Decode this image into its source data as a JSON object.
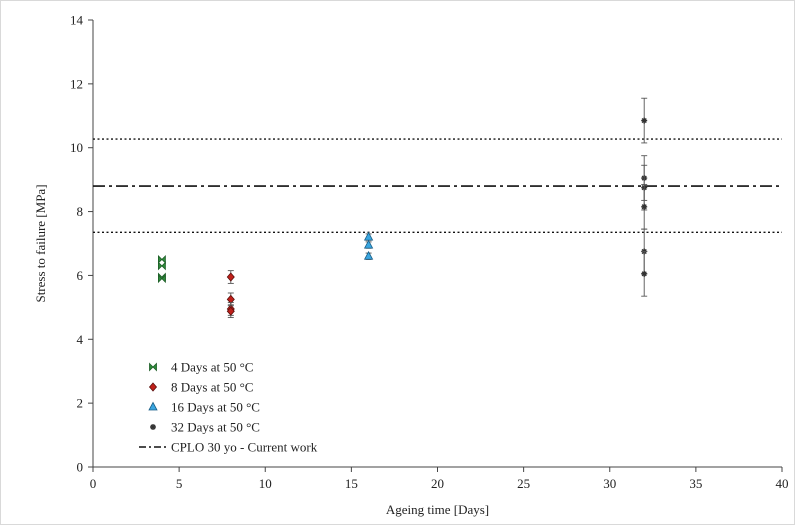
{
  "chart_data": {
    "type": "scatter",
    "xlabel": "Ageing time [Days]",
    "ylabel": "Stress to failure [MPa]",
    "xlim": [
      0,
      40
    ],
    "ylim": [
      0,
      14
    ],
    "x_ticks": [
      0,
      5,
      10,
      15,
      20,
      25,
      30,
      35,
      40
    ],
    "y_ticks": [
      0,
      2,
      4,
      6,
      8,
      10,
      12,
      14
    ],
    "grid": false,
    "legend_position": "bottom-left",
    "series": [
      {
        "name": "4 Days at 50 °C",
        "marker": "bowtie",
        "color": "#2e8b3a",
        "points": [
          {
            "x": 4,
            "y": 6.5,
            "err": 0.0
          },
          {
            "x": 4,
            "y": 6.3,
            "err": 0.0
          },
          {
            "x": 4,
            "y": 5.95,
            "err": 0.0
          },
          {
            "x": 4,
            "y": 5.9,
            "err": 0.0
          }
        ]
      },
      {
        "name": "8 Days at 50 °C",
        "marker": "diamond",
        "color": "#c0201a",
        "points": [
          {
            "x": 8,
            "y": 5.95,
            "err": 0.2
          },
          {
            "x": 8,
            "y": 5.25,
            "err": 0.2
          },
          {
            "x": 8,
            "y": 4.95,
            "err": 0.2
          },
          {
            "x": 8,
            "y": 4.88,
            "err": 0.2
          }
        ]
      },
      {
        "name": "16 Days at 50 °C",
        "marker": "triangle",
        "color": "#3aa6e0",
        "points": [
          {
            "x": 16,
            "y": 7.2,
            "err": 0.1
          },
          {
            "x": 16,
            "y": 6.95,
            "err": 0.1
          },
          {
            "x": 16,
            "y": 6.6,
            "err": 0.1
          }
        ]
      },
      {
        "name": "32 Days at 50 °C",
        "marker": "star",
        "color": "#333333",
        "points": [
          {
            "x": 32,
            "y": 10.85,
            "err": 0.7
          },
          {
            "x": 32,
            "y": 9.05,
            "err": 0.7
          },
          {
            "x": 32,
            "y": 8.75,
            "err": 0.7
          },
          {
            "x": 32,
            "y": 8.15,
            "err": 0.7
          },
          {
            "x": 32,
            "y": 6.75,
            "err": 0.7
          },
          {
            "x": 32,
            "y": 6.05,
            "err": 0.7
          }
        ]
      }
    ],
    "reference_lines": [
      {
        "name": "CPLO 30 yo - Current work",
        "y": 8.8,
        "style": "dashdot",
        "in_legend": true
      },
      {
        "name": "",
        "y": 10.27,
        "style": "dotted",
        "in_legend": false
      },
      {
        "name": "",
        "y": 7.35,
        "style": "dotted",
        "in_legend": false
      }
    ]
  }
}
